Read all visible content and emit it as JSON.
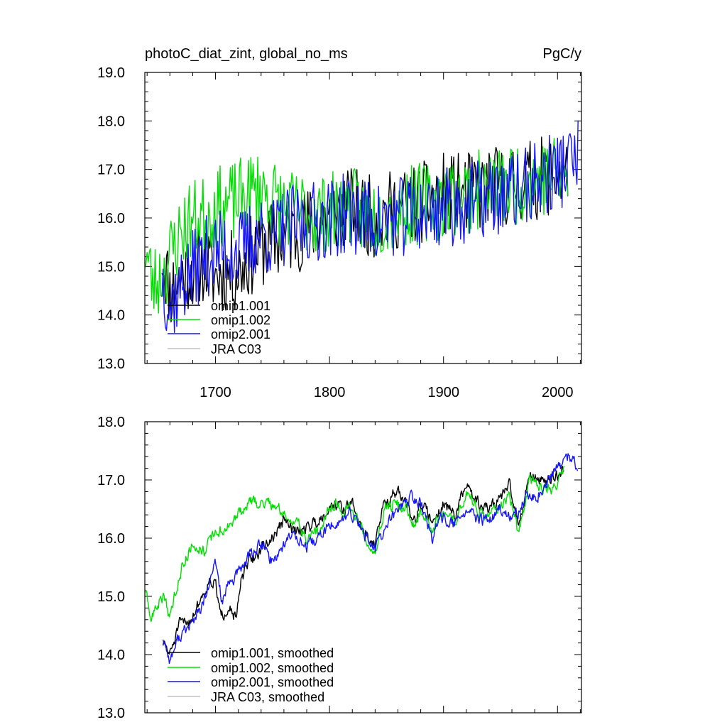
{
  "header": {
    "title": "photoC_diat_zint, global_no_ms",
    "units": "PgC/y"
  },
  "colors": {
    "omip1_001": "#000000",
    "omip1_002": "#00e000",
    "omip2_001": "#1414ff",
    "jra_c03": "#c0c0c0"
  },
  "chart_data": [
    {
      "type": "line",
      "panel": "top",
      "title": "photoC_diat_zint, global_no_ms",
      "xlim": [
        1638,
        2021
      ],
      "ylim": [
        13.0,
        19.0
      ],
      "x_ticks": [
        1700,
        1800,
        1900,
        2000
      ],
      "x_tick_labels": [
        "1700",
        "1800",
        "1900",
        "2000"
      ],
      "y_ticks": [
        13,
        14,
        15,
        16,
        17,
        18,
        19
      ],
      "y_tick_labels": [
        "13.0",
        "14.0",
        "15.0",
        "16.0",
        "17.0",
        "18.0",
        "19.0"
      ],
      "legend_position": "bottom-left",
      "legend": [
        "omip1.001",
        "omip1.002",
        "omip2.001",
        "JRA C03"
      ],
      "series": [
        {
          "name": "omip1.001",
          "color_key": "omip1_001",
          "anchors": [
            [
              1653,
              15.3
            ],
            [
              1660,
              14.5
            ],
            [
              1670,
              14.8
            ],
            [
              1680,
              15.0
            ],
            [
              1690,
              15.1
            ],
            [
              1700,
              14.8
            ],
            [
              1710,
              14.9
            ],
            [
              1720,
              14.9
            ],
            [
              1730,
              15.2
            ],
            [
              1740,
              15.4
            ],
            [
              1750,
              15.5
            ],
            [
              1760,
              15.6
            ],
            [
              1780,
              15.8
            ],
            [
              1800,
              16.1
            ],
            [
              1820,
              16.2
            ],
            [
              1840,
              16.0
            ],
            [
              1860,
              16.2
            ],
            [
              1880,
              16.3
            ],
            [
              1900,
              16.5
            ],
            [
              1920,
              16.5
            ],
            [
              1940,
              16.6
            ],
            [
              1960,
              16.7
            ],
            [
              1980,
              16.8
            ],
            [
              2000,
              16.9
            ],
            [
              2009,
              16.8
            ]
          ],
          "amplitude": 0.85,
          "seed": 11
        },
        {
          "name": "omip1.002",
          "color_key": "omip1_002",
          "anchors": [
            [
              1638,
              15.4
            ],
            [
              1645,
              14.6
            ],
            [
              1655,
              14.9
            ],
            [
              1665,
              15.5
            ],
            [
              1675,
              15.9
            ],
            [
              1685,
              16.0
            ],
            [
              1700,
              16.2
            ],
            [
              1715,
              16.3
            ],
            [
              1730,
              16.5
            ],
            [
              1740,
              16.6
            ],
            [
              1750,
              16.4
            ],
            [
              1760,
              16.2
            ],
            [
              1780,
              16.1
            ],
            [
              1800,
              16.1
            ],
            [
              1820,
              16.2
            ],
            [
              1840,
              16.0
            ],
            [
              1860,
              16.2
            ],
            [
              1880,
              16.3
            ],
            [
              1900,
              16.4
            ],
            [
              1920,
              16.5
            ],
            [
              1940,
              16.6
            ],
            [
              1960,
              16.7
            ],
            [
              1980,
              16.8
            ],
            [
              2000,
              16.9
            ],
            [
              2009,
              16.8
            ]
          ],
          "amplitude": 0.85,
          "seed": 23
        },
        {
          "name": "omip2.001",
          "color_key": "omip2_001",
          "anchors": [
            [
              1653,
              14.8
            ],
            [
              1660,
              14.2
            ],
            [
              1670,
              14.6
            ],
            [
              1680,
              14.9
            ],
            [
              1690,
              15.2
            ],
            [
              1700,
              15.3
            ],
            [
              1710,
              15.4
            ],
            [
              1720,
              15.3
            ],
            [
              1730,
              15.5
            ],
            [
              1740,
              15.7
            ],
            [
              1750,
              15.6
            ],
            [
              1760,
              15.8
            ],
            [
              1780,
              15.9
            ],
            [
              1800,
              16.0
            ],
            [
              1820,
              16.1
            ],
            [
              1840,
              15.9
            ],
            [
              1860,
              16.0
            ],
            [
              1880,
              16.1
            ],
            [
              1900,
              16.2
            ],
            [
              1920,
              16.3
            ],
            [
              1940,
              16.4
            ],
            [
              1960,
              16.5
            ],
            [
              1980,
              16.7
            ],
            [
              2000,
              17.0
            ],
            [
              2018,
              17.2
            ]
          ],
          "amplitude": 0.85,
          "seed": 37
        }
      ]
    },
    {
      "type": "line",
      "panel": "bottom",
      "xlim": [
        1638,
        2021
      ],
      "ylim": [
        13.0,
        18.0
      ],
      "x_ticks": [
        1700,
        1800,
        1900,
        2000
      ],
      "y_ticks": [
        13,
        14,
        15,
        16,
        17,
        18
      ],
      "y_tick_labels": [
        "13.0",
        "14.0",
        "15.0",
        "16.0",
        "17.0",
        "18.0"
      ],
      "legend_position": "bottom-left",
      "legend": [
        "omip1.001, smoothed",
        "omip1.002, smoothed",
        "omip2.001, smoothed",
        "JRA C03, smoothed"
      ],
      "series": [
        {
          "name": "omip1.001, smoothed",
          "color_key": "omip1_001",
          "anchors": [
            [
              1654,
              14.2
            ],
            [
              1660,
              14.0
            ],
            [
              1668,
              14.5
            ],
            [
              1678,
              14.6
            ],
            [
              1688,
              15.0
            ],
            [
              1695,
              15.3
            ],
            [
              1700,
              15.2
            ],
            [
              1705,
              14.6
            ],
            [
              1712,
              14.9
            ],
            [
              1718,
              14.6
            ],
            [
              1723,
              15.3
            ],
            [
              1730,
              15.6
            ],
            [
              1740,
              15.8
            ],
            [
              1750,
              16.0
            ],
            [
              1760,
              16.3
            ],
            [
              1770,
              16.1
            ],
            [
              1780,
              16.2
            ],
            [
              1790,
              16.3
            ],
            [
              1798,
              16.5
            ],
            [
              1805,
              16.6
            ],
            [
              1812,
              16.5
            ],
            [
              1820,
              16.6
            ],
            [
              1830,
              16.1
            ],
            [
              1840,
              15.9
            ],
            [
              1848,
              16.6
            ],
            [
              1858,
              16.8
            ],
            [
              1868,
              16.6
            ],
            [
              1875,
              16.3
            ],
            [
              1880,
              16.6
            ],
            [
              1890,
              16.3
            ],
            [
              1900,
              16.6
            ],
            [
              1910,
              16.4
            ],
            [
              1920,
              16.9
            ],
            [
              1930,
              16.6
            ],
            [
              1940,
              16.5
            ],
            [
              1950,
              16.7
            ],
            [
              1958,
              16.9
            ],
            [
              1966,
              16.2
            ],
            [
              1975,
              17.1
            ],
            [
              1985,
              17.0
            ],
            [
              1995,
              17.0
            ],
            [
              2006,
              17.2
            ]
          ],
          "amplitude": 0.2,
          "seed": 51
        },
        {
          "name": "omip1.002, smoothed",
          "color_key": "omip1_002",
          "anchors": [
            [
              1638,
              15.1
            ],
            [
              1643,
              14.6
            ],
            [
              1650,
              14.9
            ],
            [
              1656,
              15.0
            ],
            [
              1660,
              14.6
            ],
            [
              1666,
              15.2
            ],
            [
              1672,
              15.6
            ],
            [
              1680,
              15.9
            ],
            [
              1690,
              15.8
            ],
            [
              1700,
              16.1
            ],
            [
              1712,
              16.2
            ],
            [
              1720,
              16.4
            ],
            [
              1730,
              16.6
            ],
            [
              1740,
              16.6
            ],
            [
              1750,
              16.6
            ],
            [
              1760,
              16.4
            ],
            [
              1770,
              16.3
            ],
            [
              1780,
              16.0
            ],
            [
              1790,
              16.1
            ],
            [
              1798,
              16.5
            ],
            [
              1805,
              16.6
            ],
            [
              1812,
              16.5
            ],
            [
              1820,
              16.5
            ],
            [
              1830,
              16.1
            ],
            [
              1840,
              15.8
            ],
            [
              1848,
              16.5
            ],
            [
              1858,
              16.6
            ],
            [
              1868,
              16.5
            ],
            [
              1875,
              16.2
            ],
            [
              1880,
              16.5
            ],
            [
              1890,
              16.2
            ],
            [
              1900,
              16.4
            ],
            [
              1910,
              16.3
            ],
            [
              1920,
              16.8
            ],
            [
              1930,
              16.5
            ],
            [
              1940,
              16.4
            ],
            [
              1950,
              16.6
            ],
            [
              1958,
              16.8
            ],
            [
              1966,
              16.0
            ],
            [
              1975,
              17.0
            ],
            [
              1985,
              16.9
            ],
            [
              1995,
              16.8
            ],
            [
              2006,
              17.2
            ]
          ],
          "amplitude": 0.2,
          "seed": 63
        },
        {
          "name": "omip2.001, smoothed",
          "color_key": "omip2_001",
          "anchors": [
            [
              1654,
              14.3
            ],
            [
              1660,
              13.9
            ],
            [
              1668,
              14.3
            ],
            [
              1678,
              14.5
            ],
            [
              1688,
              14.8
            ],
            [
              1695,
              15.2
            ],
            [
              1700,
              15.6
            ],
            [
              1706,
              14.9
            ],
            [
              1712,
              15.2
            ],
            [
              1720,
              15.4
            ],
            [
              1730,
              15.7
            ],
            [
              1740,
              15.9
            ],
            [
              1750,
              15.6
            ],
            [
              1760,
              15.9
            ],
            [
              1770,
              16.1
            ],
            [
              1780,
              15.8
            ],
            [
              1790,
              16.0
            ],
            [
              1800,
              16.2
            ],
            [
              1810,
              16.3
            ],
            [
              1820,
              16.4
            ],
            [
              1830,
              16.1
            ],
            [
              1840,
              15.8
            ],
            [
              1850,
              16.2
            ],
            [
              1860,
              16.5
            ],
            [
              1870,
              16.7
            ],
            [
              1880,
              16.6
            ],
            [
              1890,
              16.0
            ],
            [
              1900,
              16.4
            ],
            [
              1910,
              16.2
            ],
            [
              1920,
              16.5
            ],
            [
              1930,
              16.3
            ],
            [
              1940,
              16.3
            ],
            [
              1950,
              16.5
            ],
            [
              1960,
              16.3
            ],
            [
              1970,
              16.6
            ],
            [
              1980,
              16.7
            ],
            [
              1990,
              16.9
            ],
            [
              2000,
              17.2
            ],
            [
              2010,
              17.4
            ],
            [
              2018,
              17.2
            ]
          ],
          "amplitude": 0.2,
          "seed": 77
        }
      ]
    }
  ]
}
